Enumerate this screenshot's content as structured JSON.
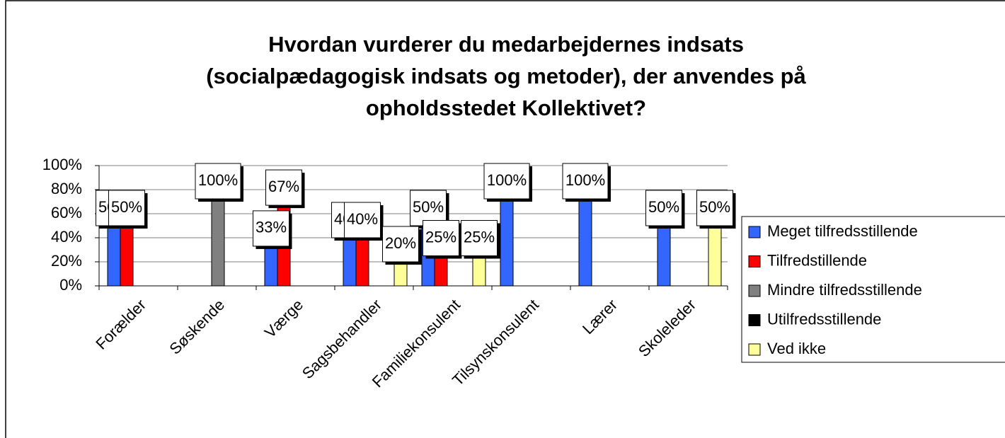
{
  "chart_data": {
    "type": "bar",
    "title": [
      "Hvordan vurderer du medarbejdernes indsats",
      "(socialpædagogisk indsats og metoder), der anvendes på",
      "opholdsstedet Kollektivet?"
    ],
    "categories": [
      "Forælder",
      "Søskende",
      "Værge",
      "Sagsbehandler",
      "Familiekonsulent",
      "Tilsynskonsulent",
      "Lærer",
      "Skoleleder"
    ],
    "series": [
      {
        "name": "Meget tilfredsstillende",
        "color": "#3366ff",
        "values": [
          50,
          null,
          33,
          40,
          50,
          100,
          100,
          50
        ],
        "value_labels": [
          "50%",
          null,
          "33%",
          "40%",
          "50%",
          "100%",
          "100%",
          "50%"
        ]
      },
      {
        "name": "Tilfredstillende",
        "color": "#ff0000",
        "values": [
          50,
          null,
          67,
          40,
          25,
          null,
          null,
          null
        ],
        "value_labels": [
          "50%",
          null,
          "67%",
          "40%",
          "25%",
          null,
          null,
          null
        ]
      },
      {
        "name": "Mindre tilfredsstillende",
        "color": "#808080",
        "values": [
          null,
          100,
          null,
          null,
          null,
          null,
          null,
          null
        ],
        "value_labels": [
          null,
          "100%",
          null,
          null,
          null,
          null,
          null,
          null
        ]
      },
      {
        "name": "Utilfredsstillende",
        "color": "#000000",
        "values": [
          null,
          null,
          null,
          null,
          null,
          null,
          null,
          null
        ],
        "value_labels": [
          null,
          null,
          null,
          null,
          null,
          null,
          null,
          null
        ]
      },
      {
        "name": "Ved ikke",
        "color": "#ffff99",
        "values": [
          null,
          null,
          null,
          20,
          25,
          null,
          null,
          50
        ],
        "value_labels": [
          null,
          null,
          null,
          "20%",
          "25%",
          null,
          null,
          "50%"
        ]
      }
    ],
    "ylim": [
      0,
      100
    ],
    "yticks": [
      {
        "value": 0,
        "label": "0%"
      },
      {
        "value": 20,
        "label": "20%"
      },
      {
        "value": 40,
        "label": "40%"
      },
      {
        "value": 60,
        "label": "60%"
      },
      {
        "value": 80,
        "label": "80%"
      },
      {
        "value": 100,
        "label": "100%"
      }
    ],
    "grid": true,
    "legend": "right"
  }
}
